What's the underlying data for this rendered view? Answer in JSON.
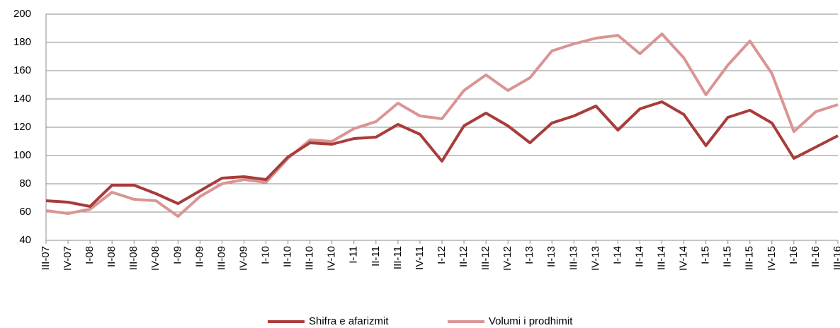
{
  "chart_data": {
    "type": "line",
    "categories": [
      "III-07",
      "IV-07",
      "I-08",
      "II-08",
      "III-08",
      "IV-08",
      "I-09",
      "II-09",
      "III-09",
      "IV-09",
      "I-10",
      "II-10",
      "III-10",
      "IV-10",
      "I-11",
      "II-11",
      "III-11",
      "IV-11",
      "I-12",
      "II-12",
      "III-12",
      "IV-12",
      "I-13",
      "II-13",
      "III-13",
      "IV-13",
      "I-14",
      "II-14",
      "III-14",
      "IV-14",
      "I-15",
      "II-15",
      "III-15",
      "IV-15",
      "I-16",
      "II-16",
      "III-16"
    ],
    "series": [
      {
        "name": "Shifra e afarizmit",
        "color": "#a93c3a",
        "values": [
          68,
          67,
          64,
          79,
          79,
          73,
          66,
          75,
          84,
          85,
          83,
          99,
          109,
          108,
          112,
          113,
          122,
          115,
          96,
          121,
          130,
          121,
          109,
          123,
          128,
          135,
          118,
          133,
          138,
          129,
          107,
          127,
          132,
          123,
          98,
          106,
          114
        ]
      },
      {
        "name": "Volumi i prodhimit",
        "color": "#d99594",
        "values": [
          61,
          59,
          62,
          74,
          69,
          68,
          57,
          71,
          80,
          83,
          81,
          98,
          111,
          110,
          119,
          124,
          137,
          128,
          126,
          146,
          157,
          146,
          155,
          174,
          179,
          183,
          185,
          172,
          186,
          169,
          143,
          164,
          181,
          158,
          117,
          131,
          136
        ]
      }
    ],
    "ylim": [
      40,
      200
    ],
    "yticks": [
      40,
      60,
      80,
      100,
      120,
      140,
      160,
      180,
      200
    ],
    "grid": true,
    "legend": "bottom"
  }
}
